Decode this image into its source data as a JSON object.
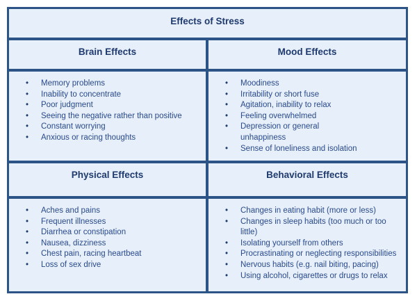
{
  "title": "Effects of Stress",
  "sections": [
    {
      "heading": "Brain Effects",
      "items": [
        "Memory problems",
        "Inability to concentrate",
        "Poor judgment",
        "Seeing the negative rather than positive",
        "Constant worrying",
        "Anxious or racing thoughts"
      ]
    },
    {
      "heading": "Mood Effects",
      "items": [
        "Moodiness",
        "Irritability or short fuse",
        "Agitation, inability to relax",
        "Feeling overwhelmed",
        "Depression or general unhappiness",
        "Sense of loneliness and isolation"
      ]
    },
    {
      "heading": "Physical Effects",
      "items": [
        "Aches and pains",
        "Frequent illnesses",
        "Diarrhea or constipation",
        "Nausea, dizziness",
        "Chest pain, racing heartbeat",
        "Loss of sex drive"
      ]
    },
    {
      "heading": "Behavioral Effects",
      "items": [
        "Changes in eating habit (more or less)",
        "Changes in sleep habits (too much or too little)",
        "Isolating yourself from others",
        "Procrastinating or neglecting responsibilities",
        "Nervous habits (e.g. nail biting, pacing)",
        "Using alcohol, cigarettes or drugs to relax"
      ]
    }
  ],
  "colors": {
    "border": "#2c5487",
    "background": "#e6effa",
    "heading": "#1f3a6e",
    "text": "#2a4a8c"
  }
}
